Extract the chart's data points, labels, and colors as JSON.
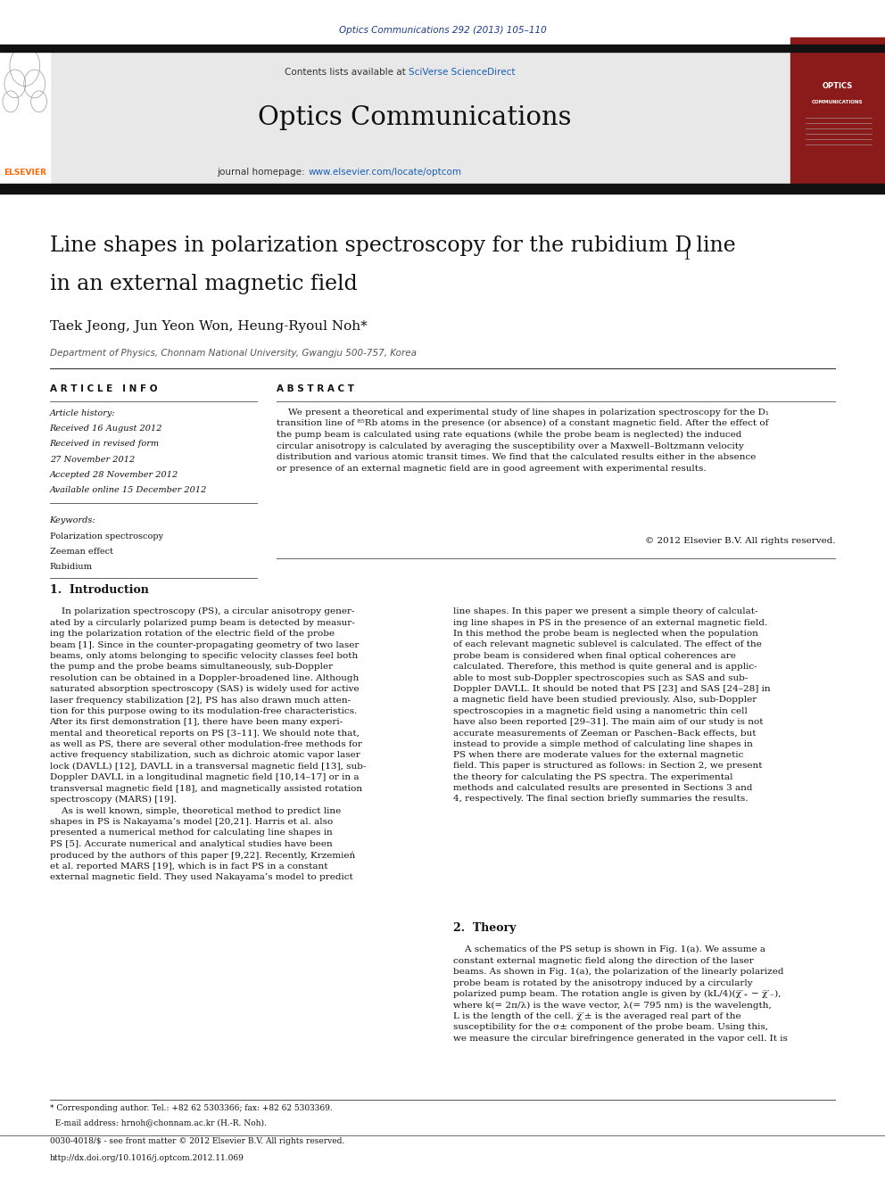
{
  "page_width": 9.92,
  "page_height": 13.23,
  "background_color": "#ffffff",
  "top_bar_color": "#1a1a1a",
  "header_bg_color": "#e8e8e8",
  "journal_ref": "Optics Communications 292 (2013) 105–110",
  "journal_ref_color": "#1a3a8a",
  "journal_name": "Optics Communications",
  "title_line1": "Line shapes in polarization spectroscopy for the rubidium D",
  "title_sub": "1",
  "title_line2": "in an external magnetic field",
  "authors": "Taek Jeong, Jun Yeon Won, Heung-Ryoul Noh*",
  "affiliation": "Department of Physics, Chonnam National University, Gwangju 500-757, Korea",
  "article_info_header": "A R T I C L E   I N F O",
  "abstract_header": "A B S T R A C T",
  "keyword1": "Polarization spectroscopy",
  "keyword2": "Zeeman effect",
  "keyword3": "Rubidium",
  "copyright": "© 2012 Elsevier B.V. All rights reserved.",
  "section1_header": "1.  Introduction",
  "section2_header": "2.  Theory",
  "footnote1": "* Corresponding author. Tel.: +82 62 5303366; fax: +82 62 5303369.",
  "footnote2": "  E-mail address: hrnoh@chonnam.ac.kr (H.-R. Noh).",
  "footnote3": "0030-4018/$ - see front matter © 2012 Elsevier B.V. All rights reserved.",
  "footnote4": "http://dx.doi.org/10.1016/j.optcom.2012.11.069",
  "link_color": "#1a5eb8",
  "thick_bar_color": "#111111"
}
